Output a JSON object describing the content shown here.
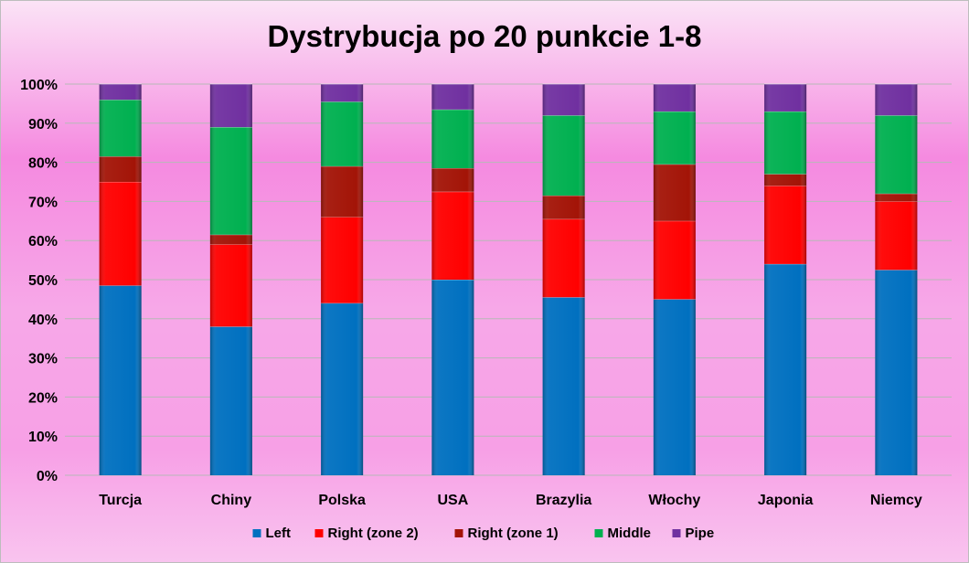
{
  "chart_data": {
    "type": "bar",
    "stacked": true,
    "title": "Dystrybucja po 20 punkcie 1-8",
    "categories": [
      "Turcja",
      "Chiny",
      "Polska",
      "USA",
      "Brazylia",
      "Włochy",
      "Japonia",
      "Niemcy"
    ],
    "series": [
      {
        "name": "Left",
        "color": "#0070C0",
        "values": [
          48.5,
          38,
          44,
          50,
          45.5,
          45,
          54,
          52.5
        ]
      },
      {
        "name": "Right (zone 2)",
        "color": "#FF0000",
        "values": [
          26.5,
          21,
          22,
          22.5,
          20,
          20,
          20,
          17.5
        ]
      },
      {
        "name": "Right (zone 1)",
        "color": "#A31407",
        "values": [
          6.5,
          2.5,
          13,
          6,
          6,
          14.5,
          3,
          2
        ]
      },
      {
        "name": "Middle",
        "color": "#00B050",
        "values": [
          14.5,
          27.5,
          16.5,
          15,
          20.5,
          13.5,
          16,
          20
        ]
      },
      {
        "name": "Pipe",
        "color": "#7030A0",
        "values": [
          4,
          11,
          4.5,
          6.5,
          8,
          7,
          7,
          8
        ]
      }
    ],
    "y_ticks": [
      "0%",
      "10%",
      "20%",
      "30%",
      "40%",
      "50%",
      "60%",
      "70%",
      "80%",
      "90%",
      "100%"
    ],
    "ylim": [
      0,
      100
    ],
    "grid": true,
    "legend_position": "bottom"
  }
}
